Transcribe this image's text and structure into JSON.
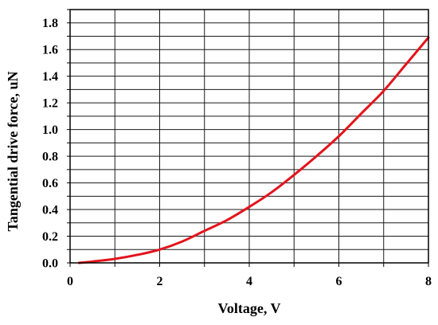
{
  "chart_data": {
    "type": "line",
    "xlabel": "Voltage, V",
    "ylabel": "Tangential drive force, uN",
    "xlim": [
      0,
      8
    ],
    "ylim": [
      0,
      1.9
    ],
    "xticks": [
      "0",
      "2",
      "4",
      "6",
      "8"
    ],
    "yticks": [
      "0.0",
      "0.2",
      "0.4",
      "0.6",
      "0.8",
      "1.0",
      "1.2",
      "1.4",
      "1.6",
      "1.8"
    ],
    "grid": true,
    "series": [
      {
        "color": "#e3141d",
        "x": [
          0.2,
          0.5,
          1,
          1.5,
          2,
          2.5,
          3,
          3.5,
          4,
          4.5,
          5,
          5.5,
          6,
          6.5,
          7,
          7.5,
          8
        ],
        "y": [
          0,
          0.01,
          0.03,
          0.06,
          0.1,
          0.16,
          0.24,
          0.32,
          0.42,
          0.53,
          0.66,
          0.8,
          0.95,
          1.12,
          1.29,
          1.49,
          1.69
        ]
      }
    ]
  }
}
